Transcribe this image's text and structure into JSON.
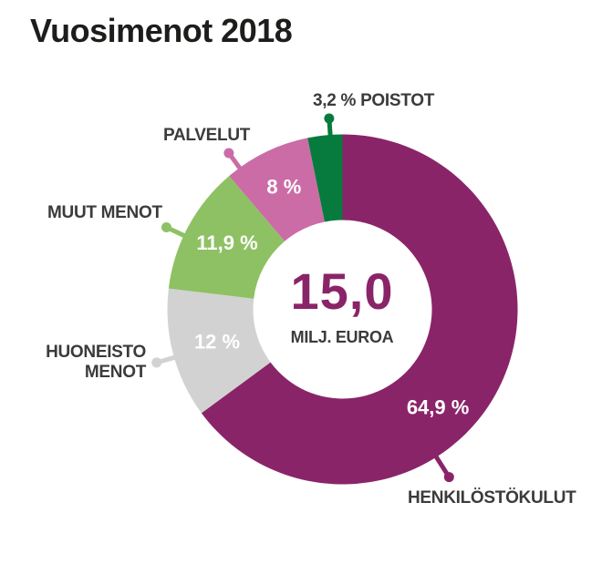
{
  "title": "Vuosimenot 2018",
  "center": {
    "value": "15,0",
    "unit": "MILJ. EUROA"
  },
  "labels": {
    "poistot": "3,2 % POISTOT",
    "palvelut": "PALVELUT",
    "muut_menot": "MUUT MENOT",
    "huoneisto_line1": "HUONEISTO",
    "huoneisto_line2": "MENOT",
    "henkilostokulut": "HENKILÖSTÖKULUT"
  },
  "colors": {
    "background": "#ffffff",
    "title_text": "#1d1d1b",
    "label_text": "#3b3b3a",
    "center_value_text": "#8a2468",
    "inside_label_text": "#ffffff"
  },
  "chart_data": {
    "type": "pie",
    "subtype": "donut",
    "title": "Vuosimenot 2018",
    "center_total": "15,0 MILJ. EUROA",
    "start_angle": 0,
    "direction": "clockwise",
    "slices": [
      {
        "key": "henkilostokulut",
        "label": "HENKILÖSTÖKULUT",
        "value": 64.9,
        "display": "64,9 %",
        "color": "#8a2468",
        "label_angle": 135.8,
        "label_r": 150,
        "pin_angle": 147.6,
        "pin_r": 218
      },
      {
        "key": "huoneisto-menot",
        "label": "HUONEISTO MENOT",
        "value": 12.0,
        "display": "12 %",
        "color": "#d2d2d2",
        "label_angle": 255.5,
        "label_r": 142,
        "pin_angle": 254,
        "pin_r": 212
      },
      {
        "key": "muut-menot",
        "label": "MUUT MENOT",
        "value": 11.9,
        "display": "11,9 %",
        "color": "#8ec164",
        "label_angle": 300,
        "label_r": 146,
        "pin_angle": 295,
        "pin_r": 213
      },
      {
        "key": "palvelut",
        "label": "PALVELUT",
        "value": 8.0,
        "display": "8 %",
        "color": "#cb6ca6",
        "label_angle": 334.5,
        "label_r": 149,
        "pin_angle": 324,
        "pin_r": 212
      },
      {
        "key": "poistot",
        "label": "POISTOT",
        "value": 3.2,
        "display": "3,2 %",
        "color": "#077b3e",
        "label_angle": null,
        "label_r": null,
        "pin_angle": 356,
        "pin_r": 210
      }
    ]
  }
}
